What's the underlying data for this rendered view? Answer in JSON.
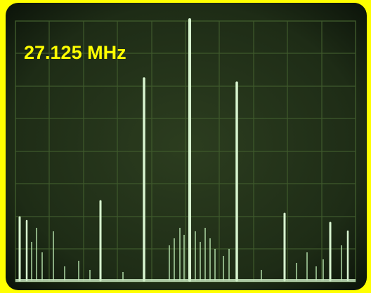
{
  "label": "27.125 MHz"
}
